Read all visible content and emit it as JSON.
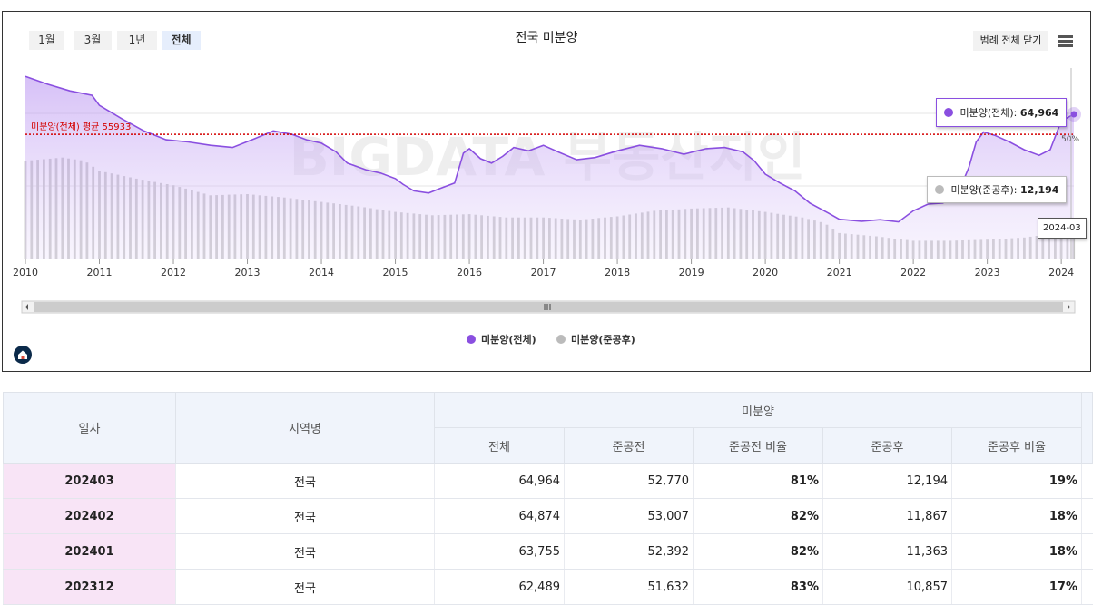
{
  "period_buttons": [
    "1월",
    "3월",
    "1년",
    "전체"
  ],
  "active_period": "전체",
  "legend_close_label": "범례 전체 닫기",
  "chart_data": {
    "type": "line",
    "title": "전국 미분양",
    "x_tick_labels": [
      "2010",
      "2011",
      "2012",
      "2013",
      "2014",
      "2015",
      "2016",
      "2017",
      "2018",
      "2019",
      "2020",
      "2021",
      "2022",
      "2023",
      "2024"
    ],
    "ylim": [
      0,
      85000
    ],
    "series": [
      {
        "name": "미분양(전체)",
        "type": "area",
        "color": "#8a4fe0",
        "points": [
          [
            2010.0,
            82000
          ],
          [
            2010.3,
            78500
          ],
          [
            2010.6,
            75500
          ],
          [
            2010.9,
            73500
          ],
          [
            2011.0,
            69000
          ],
          [
            2011.3,
            63000
          ],
          [
            2011.6,
            57500
          ],
          [
            2011.9,
            53500
          ],
          [
            2012.2,
            52500
          ],
          [
            2012.5,
            51000
          ],
          [
            2012.8,
            50000
          ],
          [
            2013.1,
            54000
          ],
          [
            2013.35,
            57500
          ],
          [
            2013.6,
            56000
          ],
          [
            2013.8,
            53500
          ],
          [
            2014.0,
            52000
          ],
          [
            2014.2,
            48000
          ],
          [
            2014.35,
            43000
          ],
          [
            2014.6,
            40000
          ],
          [
            2014.8,
            38500
          ],
          [
            2015.0,
            36000
          ],
          [
            2015.1,
            33500
          ],
          [
            2015.25,
            30500
          ],
          [
            2015.45,
            29500
          ],
          [
            2015.6,
            31500
          ],
          [
            2015.8,
            34000
          ],
          [
            2015.92,
            47500
          ],
          [
            2016.0,
            49500
          ],
          [
            2016.15,
            45000
          ],
          [
            2016.3,
            43000
          ],
          [
            2016.45,
            46000
          ],
          [
            2016.6,
            50000
          ],
          [
            2016.8,
            48500
          ],
          [
            2017.0,
            51000
          ],
          [
            2017.2,
            48000
          ],
          [
            2017.45,
            44500
          ],
          [
            2017.7,
            45500
          ],
          [
            2018.0,
            48500
          ],
          [
            2018.3,
            51000
          ],
          [
            2018.6,
            49500
          ],
          [
            2018.9,
            47000
          ],
          [
            2019.2,
            49500
          ],
          [
            2019.45,
            50000
          ],
          [
            2019.7,
            48000
          ],
          [
            2019.85,
            44000
          ],
          [
            2020.0,
            38000
          ],
          [
            2020.2,
            34000
          ],
          [
            2020.4,
            30500
          ],
          [
            2020.6,
            25000
          ],
          [
            2020.85,
            20500
          ],
          [
            2021.0,
            17700
          ],
          [
            2021.3,
            16800
          ],
          [
            2021.55,
            17500
          ],
          [
            2021.8,
            16500
          ],
          [
            2022.0,
            21500
          ],
          [
            2022.2,
            24500
          ],
          [
            2022.4,
            25000
          ],
          [
            2022.6,
            29000
          ],
          [
            2022.75,
            41000
          ],
          [
            2022.85,
            52500
          ],
          [
            2022.95,
            57000
          ],
          [
            2023.1,
            55500
          ],
          [
            2023.3,
            52500
          ],
          [
            2023.5,
            49000
          ],
          [
            2023.7,
            46500
          ],
          [
            2023.85,
            49000
          ],
          [
            2024.0,
            62000
          ],
          [
            2024.17,
            64964
          ]
        ]
      },
      {
        "name": "미분양(준공후)",
        "type": "bar",
        "color": "#c5c5c5",
        "points": [
          [
            2010.0,
            44000
          ],
          [
            2010.5,
            45500
          ],
          [
            2010.8,
            44000
          ],
          [
            2011.0,
            39500
          ],
          [
            2011.5,
            36000
          ],
          [
            2012.0,
            33000
          ],
          [
            2012.5,
            28500
          ],
          [
            2013.0,
            29000
          ],
          [
            2013.5,
            27500
          ],
          [
            2014.0,
            25500
          ],
          [
            2014.5,
            23500
          ],
          [
            2015.0,
            21000
          ],
          [
            2015.5,
            19500
          ],
          [
            2016.0,
            20000
          ],
          [
            2016.5,
            18500
          ],
          [
            2017.0,
            18500
          ],
          [
            2017.5,
            17500
          ],
          [
            2018.0,
            19000
          ],
          [
            2018.5,
            21500
          ],
          [
            2019.0,
            22500
          ],
          [
            2019.5,
            23000
          ],
          [
            2020.0,
            21000
          ],
          [
            2020.5,
            18500
          ],
          [
            2020.8,
            16000
          ],
          [
            2021.0,
            11500
          ],
          [
            2021.5,
            10000
          ],
          [
            2022.0,
            8000
          ],
          [
            2022.5,
            8000
          ],
          [
            2023.0,
            8500
          ],
          [
            2023.5,
            9500
          ],
          [
            2024.0,
            11700
          ],
          [
            2024.17,
            12194
          ]
        ]
      }
    ],
    "average_line": {
      "label": "미분양(전체) 평균 55933",
      "value": 55933,
      "color": "#d40000"
    },
    "side_label": "50%",
    "watermark": "BIGDATA 부동산지인",
    "tooltips": {
      "total": {
        "label": "미분양(전체):",
        "value": "64,964"
      },
      "post": {
        "label": "미분양(준공후):",
        "value": "12,194"
      },
      "date": "2024-03"
    },
    "legend": [
      {
        "name": "미분양(전체)",
        "color": "#8a4fe0"
      },
      {
        "name": "미분양(준공후)",
        "color": "#bbbbbb"
      }
    ]
  },
  "table": {
    "group_header": "미분양",
    "col_date": "일자",
    "col_region": "지역명",
    "sub_headers": [
      "전체",
      "준공전",
      "준공전 비율",
      "준공후",
      "준공후 비율"
    ],
    "rows": [
      {
        "date": "202403",
        "region": "전국",
        "total": "64,964",
        "pre": "52,770",
        "pre_ratio": "81%",
        "post": "12,194",
        "post_ratio": "19%"
      },
      {
        "date": "202402",
        "region": "전국",
        "total": "64,874",
        "pre": "53,007",
        "pre_ratio": "82%",
        "post": "11,867",
        "post_ratio": "18%"
      },
      {
        "date": "202401",
        "region": "전국",
        "total": "63,755",
        "pre": "52,392",
        "pre_ratio": "82%",
        "post": "11,363",
        "post_ratio": "18%"
      },
      {
        "date": "202312",
        "region": "전국",
        "total": "62,489",
        "pre": "51,632",
        "pre_ratio": "83%",
        "post": "10,857",
        "post_ratio": "17%"
      }
    ]
  }
}
